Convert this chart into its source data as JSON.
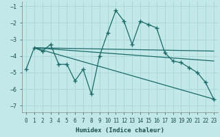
{
  "xlabel": "Humidex (Indice chaleur)",
  "bg_color": "#c2e8e8",
  "grid_color": "#a8d8d8",
  "line_color": "#1a6868",
  "xlim": [
    -0.5,
    23.5
  ],
  "ylim": [
    -7.4,
    -0.7
  ],
  "yticks": [
    -7,
    -6,
    -5,
    -4,
    -3,
    -2,
    -1
  ],
  "xticks": [
    0,
    1,
    2,
    3,
    4,
    5,
    6,
    7,
    8,
    9,
    10,
    11,
    12,
    13,
    14,
    15,
    16,
    17,
    18,
    19,
    20,
    21,
    22,
    23
  ],
  "series_main": {
    "x": [
      0,
      1,
      2,
      3,
      4,
      5,
      6,
      7,
      8,
      9,
      10,
      11,
      12,
      13,
      14,
      15,
      16,
      17,
      18,
      19,
      20,
      21,
      22,
      23
    ],
    "y": [
      -4.8,
      -3.5,
      -3.7,
      -3.3,
      -4.5,
      -4.5,
      -5.5,
      -4.8,
      -6.3,
      -4.0,
      -2.6,
      -1.25,
      -1.9,
      -3.3,
      -1.9,
      -2.1,
      -2.3,
      -3.8,
      -4.3,
      -4.4,
      -4.7,
      -5.0,
      -5.6,
      -6.6
    ]
  },
  "lines": [
    {
      "x0": 1,
      "y0": -3.5,
      "x1": 23,
      "y1": -3.7
    },
    {
      "x0": 1,
      "y0": -3.5,
      "x1": 23,
      "y1": -4.3
    },
    {
      "x0": 1,
      "y0": -3.5,
      "x1": 23,
      "y1": -6.6
    }
  ]
}
